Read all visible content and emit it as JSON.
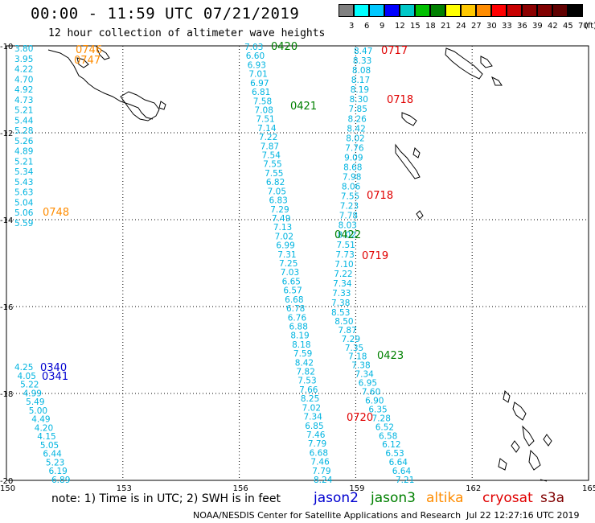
{
  "title": "00:00 - 11:59 UTC 07/21/2019",
  "subtitle": "12 hour collection of altimeter wave heights",
  "colorbar": {
    "unit": "(ft)",
    "labels": [
      "3",
      "6",
      "9",
      "12",
      "15",
      "18",
      "21",
      "24",
      "27",
      "30",
      "33",
      "36",
      "39",
      "42",
      "45",
      "70"
    ],
    "colors": [
      "#808080",
      "#00ffff",
      "#00c8ff",
      "#0000ff",
      "#00c8c8",
      "#00c000",
      "#008000",
      "#ffff00",
      "#ffc800",
      "#ff8c00",
      "#ff0000",
      "#c80000",
      "#8b0000",
      "#800000",
      "#600000",
      "#000000"
    ]
  },
  "axes": {
    "lon_ticks": [
      "150",
      "153",
      "156",
      "159",
      "162",
      "165"
    ],
    "lat_ticks": [
      "-10",
      "-12",
      "-14",
      "-16",
      "-18",
      "-20"
    ]
  },
  "colors": {
    "swh": "#00b4e0",
    "jason2": "#0000d0",
    "jason3": "#008000",
    "altika": "#ff8c00",
    "cryosat": "#e00000",
    "s3a": "#800000",
    "altika_time": "#ff8c00",
    "jason3_time": "#008000",
    "cryosat_time": "#e00000",
    "jason2_time": "#0000d0",
    "coast": "#000000",
    "grid": "#000000"
  },
  "tracks": {
    "altika_west": {
      "time_labels": [
        "0746",
        "0747",
        "0748"
      ],
      "values": [
        "3.80",
        "3.95",
        "4.22",
        "4.70",
        "4.92",
        "4.73",
        "5.21",
        "5.44",
        "5.28",
        "5.26",
        "4.89",
        "5.21",
        "5.34",
        "5.43",
        "5.63",
        "5.04",
        "5.06",
        "5.59"
      ]
    },
    "jason2_sw": {
      "time_labels": [
        "0340",
        "0341"
      ],
      "values": [
        "4.25",
        "4.05",
        "5.22",
        "4.99",
        "5.49",
        "5.00",
        "4.49",
        "4.20",
        "4.15",
        "5.05",
        "6.44",
        "5.23",
        "6.19",
        "6.89"
      ]
    },
    "jason3_a": {
      "time_labels": [
        "0420",
        "0421"
      ],
      "values": [
        "7.03",
        "6.60",
        "6.93",
        "7.01",
        "6.97",
        "6.81",
        "7.58",
        "7.08",
        "7.51",
        "7.14",
        "7.22",
        "7.87",
        "7.54",
        "7.55",
        "7.55",
        "6.82",
        "7.05",
        "6.83",
        "7.29",
        "7.49",
        "7.13",
        "7.02",
        "6.99",
        "7.31",
        "7.25",
        "7.03",
        "6.65",
        "6.57",
        "6.68",
        "6.78",
        "6.76",
        "6.88",
        "8.19",
        "8.18",
        "7.59",
        "8.42",
        "7.82",
        "7.53",
        "7.66",
        "8.25",
        "7.02",
        "7.34",
        "6.85",
        "7.46",
        "7.79",
        "6.68",
        "7.46",
        "7.79",
        "8.24"
      ]
    },
    "cryosat_e": {
      "time_labels": [
        "0717",
        "0718",
        "0718",
        "0719",
        "0720"
      ],
      "values": [
        "8.47",
        "8.33",
        "8.08",
        "8.17",
        "8.19",
        "8.30",
        "7.85",
        "8.26",
        "8.42",
        "8.02",
        "7.76",
        "9.09",
        "8.68",
        "7.98",
        "8.06",
        "7.55",
        "7.23",
        "7.78",
        "8.03",
        "8.02",
        "7.51",
        "7.73",
        "7.10",
        "7.22",
        "7.34",
        "7.33",
        "7.38",
        "8.53",
        "8.50",
        "7.87",
        "7.29",
        "7.35",
        "7.18",
        "7.38",
        "7.34",
        "6.95",
        "7.60",
        "6.90",
        "6.35",
        "7.28",
        "6.52",
        "6.58",
        "6.12",
        "6.53",
        "6.64",
        "6.64",
        "7.21"
      ]
    },
    "jason3_b": {
      "time_labels": [
        "0422",
        "0423"
      ]
    }
  },
  "note": "note: 1) Time is in UTC; 2) SWH is in feet",
  "legend": [
    "jason2",
    "jason3",
    "altika",
    "cryosat",
    "s3a"
  ],
  "footer_left": "NOAA/NESDIS Center for Satellite Applications and Research",
  "footer_right": "Jul 22 12:27:16 UTC 2019"
}
